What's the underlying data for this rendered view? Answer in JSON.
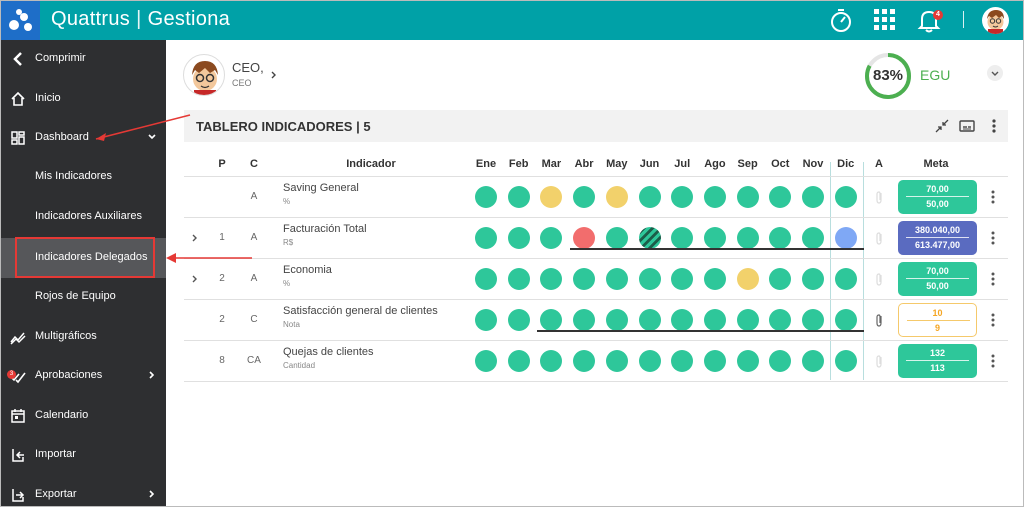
{
  "app": {
    "brand": "Quattrus",
    "product": "Gestiona",
    "separator": "|",
    "notification_count": "4"
  },
  "sidebar": {
    "items": [
      {
        "label": "Comprimir",
        "icon": "chevron-left-icon"
      },
      {
        "label": "Inicio",
        "icon": "home-icon"
      },
      {
        "label": "Dashboard",
        "icon": "dashboard-icon"
      },
      {
        "label": "Mis Indicadores"
      },
      {
        "label": "Indicadores Auxiliares"
      },
      {
        "label": "Indicadores Delegados"
      },
      {
        "label": "Rojos de Equipo"
      },
      {
        "label": "Multigráficos",
        "icon": "chart-icon"
      },
      {
        "label": "Aprobaciones",
        "icon": "check-icon",
        "badge": "3"
      },
      {
        "label": "Calendario",
        "icon": "calendar-icon"
      },
      {
        "label": "Importar",
        "icon": "import-icon"
      },
      {
        "label": "Exportar",
        "icon": "export-icon"
      }
    ]
  },
  "user": {
    "name": "CEO,",
    "role": "CEO"
  },
  "score": {
    "value": "83%",
    "fraction": 0.83,
    "label": "EGU"
  },
  "board": {
    "title": "TABLERO INDICADORES | 5"
  },
  "table": {
    "headers": {
      "p": "P",
      "c": "C",
      "indicator": "Indicador",
      "a": "A",
      "meta": "Meta"
    },
    "months": [
      "Ene",
      "Feb",
      "Mar",
      "Abr",
      "May",
      "Jun",
      "Jul",
      "Ago",
      "Sep",
      "Oct",
      "Nov",
      "Dic"
    ],
    "rows": [
      {
        "p": "",
        "c": "A",
        "name": "Saving General",
        "unit": "%",
        "expandable": false,
        "status": [
          "g",
          "g",
          "y",
          "g",
          "y",
          "g",
          "g",
          "g",
          "g",
          "g",
          "g",
          "g"
        ],
        "meta_top": "70,00",
        "meta_bottom": "50,00",
        "meta_color": "#2ec79a",
        "meta_text": "#ffffff",
        "clip": "light"
      },
      {
        "p": "1",
        "c": "A",
        "name": "Facturación Total",
        "unit": "R$",
        "expandable": true,
        "status": [
          "g",
          "g",
          "g",
          "r",
          "g",
          "s",
          "g",
          "g",
          "g",
          "g",
          "g",
          "b"
        ],
        "meta_top": "380.040,00",
        "meta_bottom": "613.477,00",
        "meta_color": "#5a6bc0",
        "meta_text": "#ffffff",
        "clip": "light"
      },
      {
        "p": "2",
        "c": "A",
        "name": "Economia",
        "unit": "%",
        "expandable": true,
        "status": [
          "g",
          "g",
          "g",
          "g",
          "g",
          "g",
          "g",
          "g",
          "y",
          "g",
          "g",
          "g"
        ],
        "meta_top": "70,00",
        "meta_bottom": "50,00",
        "meta_color": "#2ec79a",
        "meta_text": "#ffffff",
        "clip": "light"
      },
      {
        "p": "2",
        "c": "C",
        "name": "Satisfacción general de clientes",
        "unit": "Nota",
        "expandable": false,
        "status": [
          "g",
          "g",
          "g",
          "g",
          "g",
          "g",
          "g",
          "g",
          "g",
          "g",
          "g",
          "g"
        ],
        "meta_top": "10",
        "meta_bottom": "9",
        "meta_color": "#ffffff",
        "meta_text": "#f5a623",
        "clip": "dark"
      },
      {
        "p": "8",
        "c": "CA",
        "name": "Quejas de clientes",
        "unit": "Cantidad",
        "expandable": false,
        "status": [
          "g",
          "g",
          "g",
          "g",
          "g",
          "g",
          "g",
          "g",
          "g",
          "g",
          "g",
          "g"
        ],
        "meta_top": "132",
        "meta_bottom": "113",
        "meta_color": "#2ec79a",
        "meta_text": "#ffffff",
        "clip": "light"
      }
    ]
  },
  "colors": {
    "topbar": "#00a1a7",
    "sidebar": "#2e2f31",
    "green": "#2ec79a",
    "yellow": "#f2d16b",
    "red": "#f26d6d",
    "blue": "#7fa8f5",
    "annotation": "#e53935"
  }
}
